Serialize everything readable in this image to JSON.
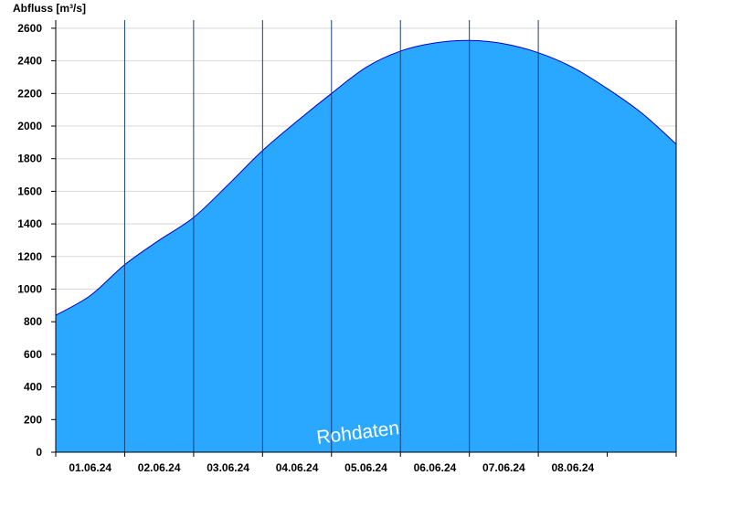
{
  "chart_data": {
    "type": "area",
    "ylabel": "Abfluss [m³/s]",
    "watermark": "Rohdaten",
    "ylim": [
      0,
      2650
    ],
    "yticks": [
      0,
      200,
      400,
      600,
      800,
      1000,
      1200,
      1400,
      1600,
      1800,
      2000,
      2200,
      2400,
      2600
    ],
    "xlim": [
      "31.05.24 00:00",
      "09.06.24 00:00"
    ],
    "day_labels": [
      "01.06.24",
      "02.06.24",
      "03.06.24",
      "04.06.24",
      "05.06.24",
      "06.06.24",
      "07.06.24",
      "08.06.24"
    ],
    "grid": "horizontal",
    "colors": {
      "fill": "#2aa7ff",
      "line": "#0000cc",
      "axis": "#000000",
      "grid": "#d8d8d8"
    },
    "series": [
      {
        "x": [
          "31.05.24 00:00",
          "31.05.24 12:00",
          "01.06.24 00:00",
          "01.06.24 12:00",
          "02.06.24 00:00",
          "02.06.24 12:00",
          "03.06.24 00:00",
          "03.06.24 12:00",
          "04.06.24 00:00",
          "04.06.24 12:00",
          "05.06.24 00:00",
          "05.06.24 12:00",
          "06.06.24 00:00",
          "06.06.24 12:00",
          "07.06.24 00:00",
          "07.06.24 12:00",
          "08.06.24 00:00",
          "08.06.24 12:00",
          "09.06.24 00:00"
        ],
        "y": [
          840,
          960,
          1150,
          1300,
          1440,
          1640,
          1850,
          2030,
          2200,
          2360,
          2460,
          2510,
          2525,
          2505,
          2450,
          2360,
          2230,
          2080,
          1890
        ]
      }
    ]
  }
}
